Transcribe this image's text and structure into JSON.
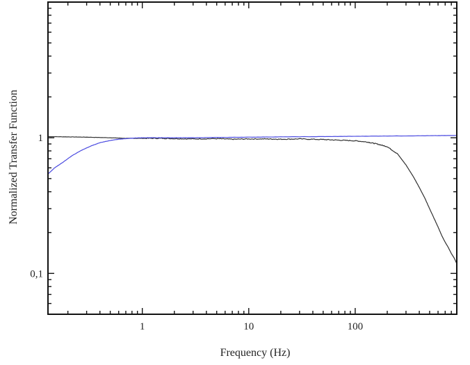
{
  "chart_data": {
    "type": "line",
    "xlabel": "Frequency (Hz)",
    "ylabel": "Normalized Transfer Function",
    "x_scale": "log",
    "y_scale": "log",
    "xlim": [
      0.13,
      900
    ],
    "ylim": [
      0.05,
      10
    ],
    "x_ticks": [
      {
        "value": 1,
        "label": "1"
      },
      {
        "value": 10,
        "label": "10"
      },
      {
        "value": 100,
        "label": "100"
      }
    ],
    "y_ticks": [
      {
        "value": 0.1,
        "label": "0,1"
      },
      {
        "value": 1,
        "label": "1"
      }
    ],
    "grid": false,
    "series": [
      {
        "color": "#303030",
        "x": [
          0.13,
          0.2,
          0.3,
          0.5,
          0.7,
          1,
          1.5,
          2,
          3,
          5,
          7,
          10,
          15,
          20,
          30,
          50,
          70,
          100,
          130,
          160,
          200,
          250,
          300,
          350,
          400,
          450,
          500,
          550,
          600,
          650,
          700,
          750,
          800,
          850,
          900
        ],
        "y": [
          1.02,
          1.015,
          1.01,
          1.0,
          0.99,
          0.99,
          0.99,
          0.985,
          0.98,
          0.985,
          0.975,
          0.98,
          0.98,
          0.975,
          0.98,
          0.97,
          0.96,
          0.95,
          0.93,
          0.9,
          0.86,
          0.76,
          0.63,
          0.52,
          0.43,
          0.36,
          0.3,
          0.255,
          0.22,
          0.19,
          0.17,
          0.155,
          0.14,
          0.13,
          0.118
        ]
      },
      {
        "color": "#4a4ae0",
        "x": [
          0.13,
          0.15,
          0.18,
          0.22,
          0.27,
          0.33,
          0.4,
          0.5,
          0.6,
          0.7,
          0.85,
          1,
          1.5,
          2,
          3,
          5,
          10,
          20,
          50,
          100,
          200,
          500,
          900
        ],
        "y": [
          0.54,
          0.6,
          0.66,
          0.74,
          0.81,
          0.87,
          0.92,
          0.955,
          0.975,
          0.985,
          0.995,
          1.0,
          1.0,
          1.0,
          1.0,
          1.005,
          1.01,
          1.015,
          1.02,
          1.025,
          1.03,
          1.035,
          1.04
        ]
      }
    ]
  }
}
